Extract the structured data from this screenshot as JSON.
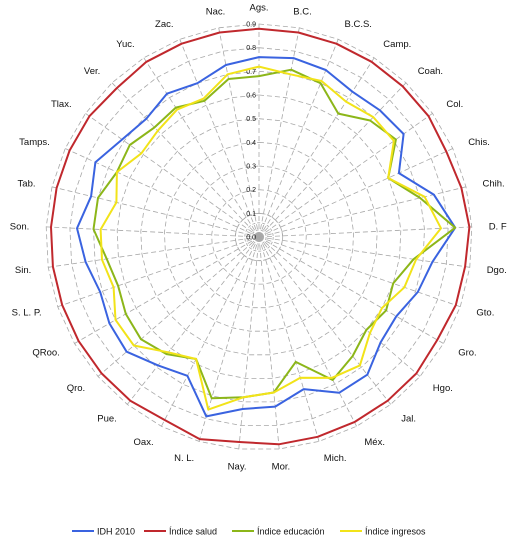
{
  "chart_data": {
    "type": "radar",
    "categories": [
      "Ags.",
      "B.C.",
      "B.C.S.",
      "Camp.",
      "Coah.",
      "Col.",
      "Chis.",
      "Chih.",
      "D. F",
      "Dgo.",
      "Gto.",
      "Gro.",
      "Hgo.",
      "Jal.",
      "Méx.",
      "Mich.",
      "Mor.",
      "Nay.",
      "N. L.",
      "Oax.",
      "Pue.",
      "Qro.",
      "QRoo.",
      "S. L. P.",
      "Sin.",
      "Son.",
      "Tab.",
      "Tamps.",
      "Tlax.",
      "Ver.",
      "Yuc.",
      "Zac.",
      "Nac."
    ],
    "rlim": [
      0,
      0.9
    ],
    "ticks": [
      "0.0",
      "0.1",
      "0.2",
      "0.3",
      "0.4",
      "0.5",
      "0.6",
      "0.7",
      "0.8",
      "0.9"
    ],
    "grid": true,
    "legend_position": "bottom",
    "series": [
      {
        "name": "IDH 2010",
        "color": "#3a63e0",
        "values": [
          0.76,
          0.77,
          0.76,
          0.73,
          0.74,
          0.75,
          0.65,
          0.76,
          0.83,
          0.74,
          0.71,
          0.67,
          0.68,
          0.74,
          0.74,
          0.67,
          0.72,
          0.73,
          0.79,
          0.66,
          0.69,
          0.74,
          0.73,
          0.71,
          0.74,
          0.77,
          0.73,
          0.76,
          0.71,
          0.69,
          0.72,
          0.7,
          0.74
        ]
      },
      {
        "name": "Índice salud",
        "color": "#c0282d",
        "values": [
          0.88,
          0.88,
          0.88,
          0.88,
          0.88,
          0.88,
          0.87,
          0.88,
          0.89,
          0.88,
          0.88,
          0.87,
          0.88,
          0.88,
          0.88,
          0.88,
          0.88,
          0.87,
          0.89,
          0.87,
          0.88,
          0.88,
          0.88,
          0.88,
          0.88,
          0.88,
          0.88,
          0.88,
          0.88,
          0.87,
          0.88,
          0.88,
          0.88
        ]
      },
      {
        "name": "Índice educación",
        "color": "#8cb619",
        "values": [
          0.68,
          0.72,
          0.7,
          0.62,
          0.68,
          0.71,
          0.6,
          0.7,
          0.83,
          0.66,
          0.6,
          0.62,
          0.6,
          0.64,
          0.68,
          0.55,
          0.66,
          0.68,
          0.71,
          0.58,
          0.63,
          0.66,
          0.65,
          0.63,
          0.65,
          0.7,
          0.7,
          0.66,
          0.67,
          0.64,
          0.65,
          0.62,
          0.68
        ]
      },
      {
        "name": "Índice ingresos",
        "color": "#f2e319",
        "values": [
          0.72,
          0.7,
          0.71,
          0.68,
          0.7,
          0.7,
          0.6,
          0.72,
          0.77,
          0.67,
          0.65,
          0.6,
          0.62,
          0.69,
          0.67,
          0.62,
          0.66,
          0.68,
          0.76,
          0.58,
          0.62,
          0.7,
          0.7,
          0.65,
          0.67,
          0.67,
          0.62,
          0.66,
          0.61,
          0.62,
          0.64,
          0.63,
          0.7
        ]
      }
    ]
  }
}
